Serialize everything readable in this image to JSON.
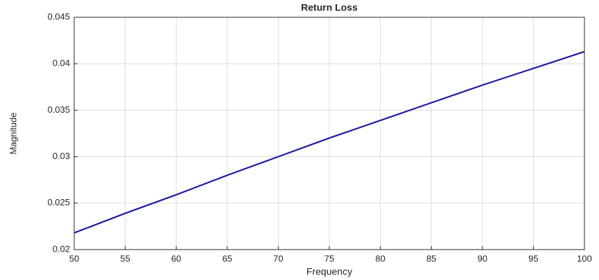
{
  "chart_data": {
    "type": "line",
    "title": "Return Loss",
    "xlabel": "Frequency",
    "ylabel": "Magnitude",
    "x": [
      50,
      55,
      60,
      65,
      70,
      75,
      80,
      85,
      90,
      95,
      100
    ],
    "series": [
      {
        "name": "Return Loss",
        "color": "#1c1ca0",
        "values": [
          0.0218,
          0.0239,
          0.0259,
          0.028,
          0.03,
          0.032,
          0.0339,
          0.0358,
          0.0377,
          0.0395,
          0.0413
        ]
      }
    ],
    "xlim": [
      50,
      100
    ],
    "xticks": [
      50,
      55,
      60,
      65,
      70,
      75,
      80,
      85,
      90,
      95,
      100
    ],
    "ylim": [
      0.02,
      0.045
    ],
    "yticks": [
      0.02,
      0.025,
      0.03,
      0.035,
      0.04,
      0.045
    ],
    "grid": true
  }
}
